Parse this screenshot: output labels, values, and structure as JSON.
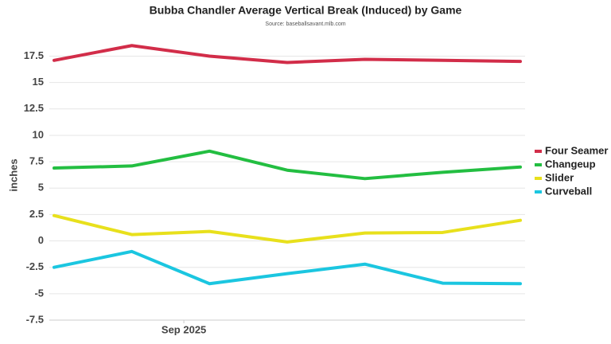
{
  "chart_data": {
    "type": "line",
    "title": "Bubba Chandler Average Vertical Break (Induced) by Game",
    "subtitle": "Source: baseballsavant.mlb.com",
    "y_label": "inches",
    "categories": [
      null,
      null,
      null,
      null,
      null,
      null,
      null
    ],
    "xticks": [
      {
        "value": 1.67,
        "label": "Sep 2025"
      }
    ],
    "ylim": [
      -7.5,
      19.8
    ],
    "yticks": [
      -7.5,
      -5,
      -2.5,
      0,
      2.5,
      5,
      7.5,
      10,
      12.5,
      15,
      17.5
    ],
    "grid": true,
    "legend": "right",
    "series": [
      {
        "name": "Four Seamer",
        "color": "#d22d49",
        "values": [
          17.1,
          18.5,
          17.5,
          16.9,
          17.2,
          17.1,
          17.0
        ]
      },
      {
        "name": "Changeup",
        "color": "#23be41",
        "values": [
          6.9,
          7.1,
          8.5,
          6.7,
          5.9,
          6.5,
          7.0
        ]
      },
      {
        "name": "Slider",
        "color": "#e8e01c",
        "values": [
          2.4,
          0.6,
          0.9,
          -0.1,
          0.75,
          0.8,
          1.95
        ]
      },
      {
        "name": "Curveball",
        "color": "#1bc6e0",
        "values": [
          -2.5,
          -1.0,
          -4.05,
          -3.1,
          -2.2,
          -4.0,
          -4.05
        ]
      }
    ]
  }
}
